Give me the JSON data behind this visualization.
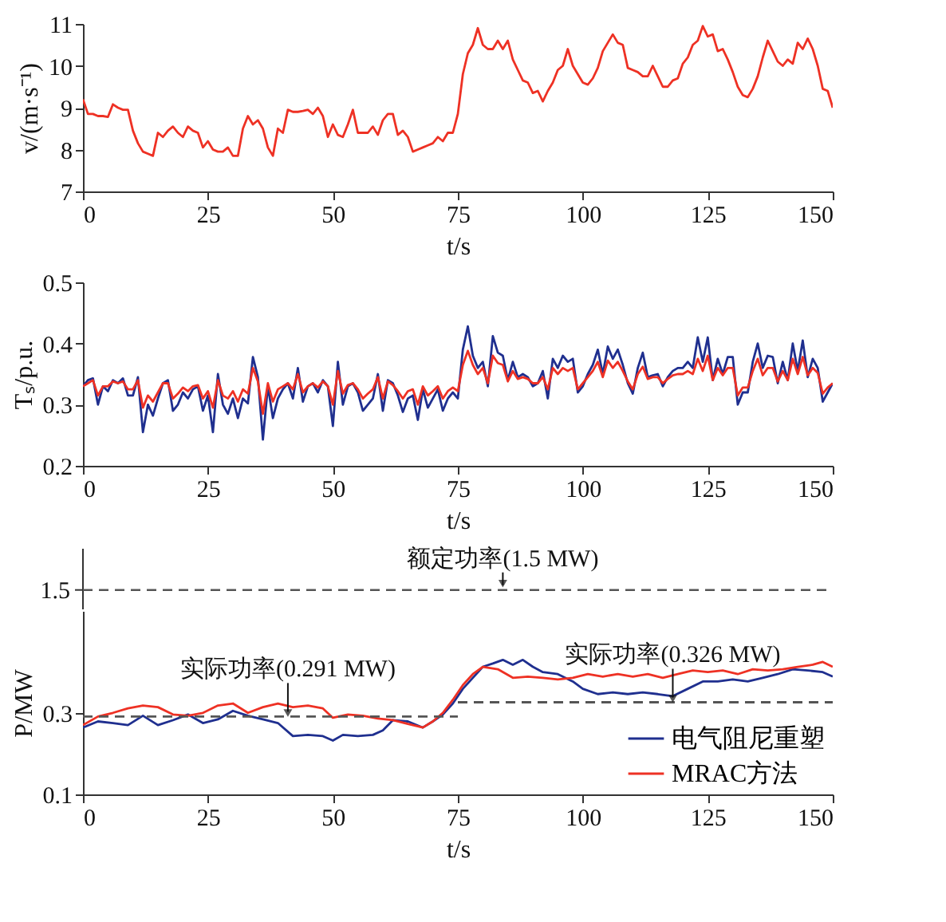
{
  "chart_data": [
    {
      "type": "line",
      "xlabel": "t/s",
      "ylabel": "v/(m·s⁻¹)",
      "xlim": [
        0,
        150
      ],
      "xticks": [
        0,
        25,
        50,
        75,
        100,
        125,
        150
      ],
      "ylim": [
        7,
        11
      ],
      "yticks": [
        7,
        8,
        9,
        10,
        11
      ],
      "grid": false,
      "line_style": "solid",
      "x": [
        0,
        1,
        2,
        3,
        4,
        5,
        6,
        7,
        8,
        9,
        10,
        11,
        12,
        13,
        14,
        15,
        16,
        17,
        18,
        19,
        20,
        21,
        22,
        23,
        24,
        25,
        26,
        27,
        28,
        29,
        30,
        31,
        32,
        33,
        34,
        35,
        36,
        37,
        38,
        39,
        40,
        41,
        42,
        43,
        44,
        45,
        46,
        47,
        48,
        49,
        50,
        51,
        52,
        53,
        54,
        55,
        56,
        57,
        58,
        59,
        60,
        61,
        62,
        63,
        64,
        65,
        66,
        67,
        68,
        69,
        70,
        71,
        72,
        73,
        74,
        75,
        76,
        77,
        78,
        79,
        80,
        81,
        82,
        83,
        84,
        85,
        86,
        87,
        88,
        89,
        90,
        91,
        92,
        93,
        94,
        95,
        96,
        97,
        98,
        99,
        100,
        101,
        102,
        103,
        104,
        105,
        106,
        107,
        108,
        109,
        110,
        111,
        112,
        113,
        114,
        115,
        116,
        117,
        118,
        119,
        120,
        121,
        122,
        123,
        124,
        125,
        126,
        127,
        128,
        129,
        130,
        131,
        132,
        133,
        134,
        135,
        136,
        137,
        138,
        139,
        140,
        141,
        142,
        143,
        144,
        145,
        146,
        147,
        148,
        149,
        150
      ],
      "series": [
        {
          "color": "#ee3124",
          "values": [
            9.2,
            8.85,
            8.85,
            8.8,
            8.8,
            8.78,
            9.08,
            9.0,
            8.95,
            8.95,
            8.45,
            8.15,
            7.95,
            7.9,
            7.85,
            8.4,
            8.3,
            8.45,
            8.55,
            8.4,
            8.3,
            8.55,
            8.45,
            8.4,
            8.05,
            8.2,
            8.0,
            7.95,
            7.95,
            8.05,
            7.85,
            7.85,
            8.5,
            8.8,
            8.6,
            8.7,
            8.5,
            8.05,
            7.85,
            8.5,
            8.4,
            8.95,
            8.9,
            8.9,
            8.92,
            8.95,
            8.85,
            9.0,
            8.8,
            8.3,
            8.6,
            8.35,
            8.3,
            8.6,
            8.95,
            8.4,
            8.4,
            8.4,
            8.55,
            8.35,
            8.7,
            8.85,
            8.85,
            8.35,
            8.45,
            8.3,
            7.95,
            8.0,
            8.05,
            8.1,
            8.15,
            8.3,
            8.2,
            8.4,
            8.4,
            8.85,
            9.8,
            10.3,
            10.5,
            10.9,
            10.5,
            10.4,
            10.4,
            10.6,
            10.4,
            10.6,
            10.15,
            9.9,
            9.65,
            9.6,
            9.35,
            9.4,
            9.15,
            9.4,
            9.6,
            9.9,
            10.0,
            10.4,
            10.0,
            9.8,
            9.6,
            9.55,
            9.7,
            9.95,
            10.35,
            10.55,
            10.75,
            10.55,
            10.5,
            9.95,
            9.9,
            9.85,
            9.75,
            9.75,
            10.0,
            9.75,
            9.5,
            9.5,
            9.65,
            9.7,
            10.05,
            10.2,
            10.5,
            10.6,
            10.95,
            10.7,
            10.75,
            10.35,
            10.4,
            10.15,
            9.85,
            9.5,
            9.3,
            9.25,
            9.45,
            9.75,
            10.2,
            10.6,
            10.35,
            10.1,
            10.0,
            10.15,
            10.05,
            10.55,
            10.4,
            10.65,
            10.4,
            10.0,
            9.45,
            9.4,
            9.0
          ]
        }
      ]
    },
    {
      "type": "line",
      "xlabel": "t/s",
      "ylabel": "Tₛ/p.u.",
      "xlim": [
        0,
        150
      ],
      "xticks": [
        0,
        25,
        50,
        75,
        100,
        125,
        150
      ],
      "ylim": [
        0.2,
        0.5
      ],
      "yticks": [
        0.2,
        0.3,
        0.4,
        0.5
      ],
      "grid": false,
      "line_style": "solid",
      "x": [
        0,
        1,
        2,
        3,
        4,
        5,
        6,
        7,
        8,
        9,
        10,
        11,
        12,
        13,
        14,
        15,
        16,
        17,
        18,
        19,
        20,
        21,
        22,
        23,
        24,
        25,
        26,
        27,
        28,
        29,
        30,
        31,
        32,
        33,
        34,
        35,
        36,
        37,
        38,
        39,
        40,
        41,
        42,
        43,
        44,
        45,
        46,
        47,
        48,
        49,
        50,
        51,
        52,
        53,
        54,
        55,
        56,
        57,
        58,
        59,
        60,
        61,
        62,
        63,
        64,
        65,
        66,
        67,
        68,
        69,
        70,
        71,
        72,
        73,
        74,
        75,
        76,
        77,
        78,
        79,
        80,
        81,
        82,
        83,
        84,
        85,
        86,
        87,
        88,
        89,
        90,
        91,
        92,
        93,
        94,
        95,
        96,
        97,
        98,
        99,
        100,
        101,
        102,
        103,
        104,
        105,
        106,
        107,
        108,
        109,
        110,
        111,
        112,
        113,
        114,
        115,
        116,
        117,
        118,
        119,
        120,
        121,
        122,
        123,
        124,
        125,
        126,
        127,
        128,
        129,
        130,
        131,
        132,
        133,
        134,
        135,
        136,
        137,
        138,
        139,
        140,
        141,
        142,
        143,
        144,
        145,
        146,
        147,
        148,
        149,
        150
      ],
      "series": [
        {
          "color": "#1f2f8f",
          "values": [
            0.33,
            0.34,
            0.343,
            0.3,
            0.33,
            0.322,
            0.34,
            0.335,
            0.343,
            0.315,
            0.315,
            0.345,
            0.255,
            0.3,
            0.282,
            0.31,
            0.335,
            0.34,
            0.29,
            0.3,
            0.32,
            0.31,
            0.325,
            0.33,
            0.29,
            0.315,
            0.255,
            0.35,
            0.3,
            0.285,
            0.31,
            0.278,
            0.31,
            0.302,
            0.378,
            0.345,
            0.243,
            0.33,
            0.278,
            0.31,
            0.325,
            0.335,
            0.31,
            0.36,
            0.305,
            0.33,
            0.335,
            0.32,
            0.34,
            0.33,
            0.265,
            0.37,
            0.3,
            0.33,
            0.335,
            0.32,
            0.29,
            0.3,
            0.31,
            0.35,
            0.29,
            0.34,
            0.335,
            0.315,
            0.288,
            0.31,
            0.315,
            0.275,
            0.325,
            0.295,
            0.31,
            0.325,
            0.29,
            0.31,
            0.32,
            0.31,
            0.39,
            0.428,
            0.38,
            0.36,
            0.37,
            0.33,
            0.412,
            0.385,
            0.38,
            0.34,
            0.37,
            0.345,
            0.35,
            0.345,
            0.33,
            0.335,
            0.355,
            0.31,
            0.375,
            0.36,
            0.38,
            0.37,
            0.375,
            0.32,
            0.33,
            0.35,
            0.365,
            0.39,
            0.35,
            0.395,
            0.375,
            0.39,
            0.365,
            0.335,
            0.318,
            0.36,
            0.385,
            0.345,
            0.348,
            0.35,
            0.33,
            0.345,
            0.355,
            0.36,
            0.36,
            0.37,
            0.36,
            0.41,
            0.37,
            0.41,
            0.34,
            0.375,
            0.35,
            0.378,
            0.378,
            0.3,
            0.32,
            0.32,
            0.37,
            0.4,
            0.36,
            0.38,
            0.378,
            0.335,
            0.37,
            0.34,
            0.4,
            0.355,
            0.405,
            0.345,
            0.375,
            0.36,
            0.305,
            0.32,
            0.335
          ]
        },
        {
          "color": "#ee3124",
          "values": [
            0.33,
            0.335,
            0.34,
            0.315,
            0.33,
            0.33,
            0.338,
            0.335,
            0.338,
            0.325,
            0.325,
            0.34,
            0.295,
            0.315,
            0.305,
            0.32,
            0.335,
            0.335,
            0.31,
            0.318,
            0.328,
            0.322,
            0.33,
            0.332,
            0.31,
            0.322,
            0.295,
            0.34,
            0.315,
            0.31,
            0.322,
            0.305,
            0.325,
            0.318,
            0.36,
            0.338,
            0.285,
            0.335,
            0.305,
            0.325,
            0.33,
            0.335,
            0.325,
            0.35,
            0.32,
            0.33,
            0.335,
            0.328,
            0.338,
            0.33,
            0.3,
            0.355,
            0.318,
            0.332,
            0.335,
            0.325,
            0.31,
            0.318,
            0.325,
            0.345,
            0.31,
            0.338,
            0.332,
            0.322,
            0.31,
            0.322,
            0.325,
            0.3,
            0.33,
            0.315,
            0.322,
            0.33,
            0.31,
            0.322,
            0.328,
            0.322,
            0.365,
            0.388,
            0.365,
            0.35,
            0.36,
            0.335,
            0.38,
            0.368,
            0.365,
            0.338,
            0.355,
            0.342,
            0.345,
            0.342,
            0.335,
            0.335,
            0.345,
            0.325,
            0.36,
            0.35,
            0.36,
            0.355,
            0.36,
            0.325,
            0.335,
            0.345,
            0.355,
            0.37,
            0.345,
            0.372,
            0.36,
            0.37,
            0.355,
            0.338,
            0.325,
            0.35,
            0.362,
            0.342,
            0.345,
            0.345,
            0.335,
            0.342,
            0.348,
            0.35,
            0.35,
            0.355,
            0.35,
            0.375,
            0.355,
            0.38,
            0.34,
            0.36,
            0.348,
            0.36,
            0.36,
            0.315,
            0.328,
            0.328,
            0.355,
            0.375,
            0.348,
            0.36,
            0.36,
            0.338,
            0.355,
            0.34,
            0.375,
            0.35,
            0.378,
            0.348,
            0.36,
            0.352,
            0.318,
            0.328,
            0.335
          ]
        }
      ]
    },
    {
      "type": "other",
      "ref_lines": [
        {
          "axis": "y",
          "label": "1.5",
          "color": "#555555",
          "line_style": "dashed"
        }
      ],
      "annotations": [
        "额定功率(1.5 MW)"
      ]
    },
    {
      "type": "line",
      "xlabel": "t/s",
      "ylabel": "P/MW",
      "xlim": [
        0,
        150
      ],
      "xticks": [
        0,
        25,
        50,
        75,
        100,
        125,
        150
      ],
      "ylim": [
        0.1,
        0.55
      ],
      "yticks": [
        0.1,
        0.3
      ],
      "grid": false,
      "line_style": "solid",
      "legend": "bottom right",
      "series": [
        {
          "name": "电气阻尼重塑",
          "color": "#1f2f8f",
          "x": [
            0,
            3,
            6,
            9,
            12,
            15,
            18,
            21,
            24,
            27,
            30,
            33,
            36,
            39,
            42,
            45,
            48,
            50,
            52,
            55,
            58,
            60,
            62,
            65,
            68,
            70,
            72,
            74,
            76,
            78,
            80,
            82,
            84,
            86,
            88,
            90,
            92,
            95,
            98,
            100,
            103,
            106,
            109,
            112,
            115,
            118,
            121,
            124,
            127,
            130,
            133,
            136,
            139,
            142,
            145,
            148,
            150
          ],
          "values": [
            0.264,
            0.279,
            0.275,
            0.27,
            0.293,
            0.27,
            0.282,
            0.296,
            0.275,
            0.284,
            0.305,
            0.293,
            0.284,
            0.275,
            0.243,
            0.246,
            0.243,
            0.232,
            0.246,
            0.243,
            0.246,
            0.257,
            0.282,
            0.279,
            0.264,
            0.279,
            0.296,
            0.323,
            0.359,
            0.386,
            0.413,
            0.421,
            0.43,
            0.418,
            0.43,
            0.413,
            0.4,
            0.395,
            0.377,
            0.359,
            0.346,
            0.35,
            0.346,
            0.35,
            0.346,
            0.341,
            0.359,
            0.377,
            0.377,
            0.382,
            0.377,
            0.386,
            0.395,
            0.407,
            0.404,
            0.4,
            0.389
          ]
        },
        {
          "name": "MRAC方法",
          "color": "#ee3124",
          "x": [
            0,
            3,
            6,
            9,
            12,
            15,
            18,
            21,
            24,
            27,
            30,
            33,
            36,
            39,
            42,
            45,
            48,
            50,
            53,
            56,
            59,
            62,
            65,
            68,
            70,
            72,
            74,
            76,
            78,
            80,
            83,
            86,
            89,
            92,
            95,
            98,
            101,
            104,
            107,
            110,
            113,
            116,
            119,
            122,
            125,
            128,
            131,
            134,
            137,
            140,
            143,
            146,
            148,
            150
          ],
          "values": [
            0.27,
            0.291,
            0.3,
            0.311,
            0.318,
            0.314,
            0.296,
            0.293,
            0.3,
            0.318,
            0.323,
            0.3,
            0.314,
            0.323,
            0.314,
            0.318,
            0.311,
            0.288,
            0.296,
            0.293,
            0.286,
            0.282,
            0.273,
            0.264,
            0.279,
            0.3,
            0.332,
            0.368,
            0.395,
            0.413,
            0.407,
            0.386,
            0.389,
            0.386,
            0.382,
            0.386,
            0.395,
            0.389,
            0.395,
            0.389,
            0.395,
            0.386,
            0.395,
            0.404,
            0.4,
            0.404,
            0.395,
            0.407,
            0.404,
            0.407,
            0.413,
            0.418,
            0.425,
            0.413
          ]
        },
        {
          "type": "line",
          "line_style": "dashed",
          "color": "#555555",
          "x": [
            0,
            75
          ],
          "values": [
            0.291,
            0.291
          ]
        },
        {
          "type": "line",
          "line_style": "dashed",
          "color": "#555555",
          "x": [
            75,
            150
          ],
          "values": [
            0.326,
            0.326
          ]
        }
      ],
      "annotations": [
        {
          "text": "实际功率(0.291 MW)",
          "x": 41,
          "y": 0.291
        },
        {
          "text": "实际功率(0.326 MW)",
          "x": 118,
          "y": 0.326
        }
      ]
    }
  ]
}
